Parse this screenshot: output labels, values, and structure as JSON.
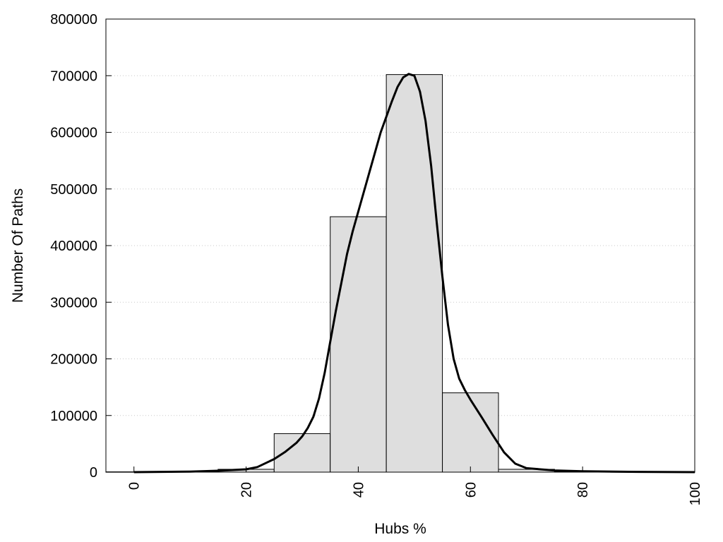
{
  "chart_data": {
    "type": "bar",
    "title": "",
    "xlabel": "Hubs %",
    "ylabel": "Number Of Paths",
    "xlim": [
      -5,
      100
    ],
    "ylim": [
      0,
      800000
    ],
    "xticks": [
      0,
      20,
      40,
      60,
      80,
      100
    ],
    "yticks": [
      0,
      100000,
      200000,
      300000,
      400000,
      500000,
      600000,
      700000,
      800000
    ],
    "xtick_labels": [
      "0",
      "20",
      "40",
      "60",
      "80",
      "100"
    ],
    "ytick_labels": [
      "0",
      "100000",
      "200000",
      "300000",
      "400000",
      "500000",
      "600000",
      "700000",
      "800000"
    ],
    "grid": "horizontal dotted",
    "bars": [
      {
        "x0": -5,
        "x1": 5,
        "value": 500
      },
      {
        "x0": 5,
        "x1": 15,
        "value": 1000
      },
      {
        "x0": 15,
        "x1": 25,
        "value": 5000
      },
      {
        "x0": 25,
        "x1": 35,
        "value": 68000
      },
      {
        "x0": 35,
        "x1": 45,
        "value": 451000
      },
      {
        "x0": 45,
        "x1": 55,
        "value": 702000
      },
      {
        "x0": 55,
        "x1": 65,
        "value": 140000
      },
      {
        "x0": 65,
        "x1": 75,
        "value": 5000
      },
      {
        "x0": 75,
        "x1": 85,
        "value": 1000
      },
      {
        "x0": 85,
        "x1": 95,
        "value": 500
      },
      {
        "x0": 95,
        "x1": 100,
        "value": 300
      }
    ],
    "curve": {
      "x": [
        0,
        10,
        15,
        20,
        22,
        25,
        27,
        29,
        30,
        31,
        32,
        33,
        34,
        35,
        36,
        37,
        38,
        39,
        40,
        42,
        44,
        46,
        47,
        48,
        49,
        50,
        51,
        52,
        53,
        54,
        55,
        56,
        57,
        58,
        59,
        60,
        62,
        64,
        66,
        68,
        70,
        75,
        80,
        90,
        100
      ],
      "y": [
        0,
        1000,
        2500,
        5000,
        9000,
        23000,
        36000,
        52000,
        63000,
        78000,
        98000,
        130000,
        175000,
        230000,
        285000,
        335000,
        385000,
        425000,
        460000,
        530000,
        600000,
        655000,
        680000,
        697000,
        703000,
        700000,
        672000,
        620000,
        540000,
        440000,
        345000,
        260000,
        200000,
        165000,
        145000,
        128000,
        97000,
        65000,
        35000,
        15000,
        7000,
        3000,
        1500,
        500,
        0
      ]
    },
    "colors": {
      "bar_fill": "#dedede",
      "bar_stroke": "#000000",
      "curve": "#000000",
      "grid": "#c8c8c8"
    }
  }
}
